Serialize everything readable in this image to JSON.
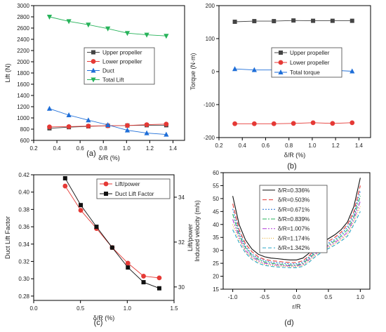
{
  "chart_data": [
    {
      "id": "a",
      "type": "line",
      "panel_label": "(a)",
      "xlabel": "δ/R (%)",
      "ylabel": "Lift (N)",
      "xlim": [
        0.2,
        1.5
      ],
      "ylim": [
        600,
        3000
      ],
      "xticks": [
        0.2,
        0.4,
        0.6,
        0.8,
        1.0,
        1.2,
        1.4
      ],
      "xtick_labels": [
        "0.2",
        "0.4",
        "0.6",
        "0.8",
        "1.0",
        "1.2",
        "1.4"
      ],
      "yticks": [
        600,
        800,
        1000,
        1200,
        1400,
        1600,
        1800,
        2000,
        2200,
        2400,
        2600,
        2800,
        3000
      ],
      "ytick_labels": [
        "600",
        "800",
        "1000",
        "1200",
        "1400",
        "1600",
        "1800",
        "2000",
        "2200",
        "2400",
        "2600",
        "2800",
        "3000"
      ],
      "legend_position": "center-right",
      "x": [
        0.336,
        0.503,
        0.671,
        0.839,
        1.007,
        1.174,
        1.342
      ],
      "series": [
        {
          "name": "Upper propeller",
          "color": "#444444",
          "marker": "square",
          "values": [
            815,
            835,
            850,
            860,
            865,
            870,
            870
          ]
        },
        {
          "name": "Lower propeller",
          "color": "#e53935",
          "marker": "circle",
          "values": [
            840,
            845,
            855,
            860,
            865,
            880,
            890
          ]
        },
        {
          "name": "Duct",
          "color": "#1e6ed8",
          "marker": "triangle-up",
          "values": [
            1165,
            1050,
            960,
            875,
            780,
            730,
            705
          ]
        },
        {
          "name": "Total Lift",
          "color": "#27b35a",
          "marker": "triangle-down",
          "values": [
            2800,
            2720,
            2660,
            2590,
            2510,
            2480,
            2460
          ]
        }
      ]
    },
    {
      "id": "b",
      "type": "line",
      "panel_label": "(b)",
      "xlabel": "δ/R (%)",
      "ylabel": "Torque (N·m)",
      "xlim": [
        0.2,
        1.5
      ],
      "ylim": [
        -200,
        200
      ],
      "xticks": [
        0.2,
        0.4,
        0.6,
        0.8,
        1.0,
        1.2,
        1.4
      ],
      "xtick_labels": [
        "0.2",
        "0.4",
        "0.6",
        "0.8",
        "1.0",
        "1.2",
        "1.4"
      ],
      "yticks": [
        -200,
        -100,
        0,
        100,
        200
      ],
      "ytick_labels": [
        "-200",
        "-100",
        "0",
        "100",
        "200"
      ],
      "legend_position": "center-right",
      "x": [
        0.336,
        0.503,
        0.671,
        0.839,
        1.007,
        1.174,
        1.342
      ],
      "series": [
        {
          "name": "Upper propeller",
          "color": "#444444",
          "marker": "square",
          "values": [
            151,
            153,
            153,
            155,
            154,
            154,
            154
          ]
        },
        {
          "name": "Lower propeller",
          "color": "#e53935",
          "marker": "circle",
          "values": [
            -158,
            -158,
            -158,
            -157,
            -155,
            -157,
            -155
          ]
        },
        {
          "name": "Total torque",
          "color": "#1e6ed8",
          "marker": "triangle-up",
          "values": [
            8,
            5,
            5,
            2,
            1,
            4,
            1
          ]
        }
      ]
    },
    {
      "id": "c",
      "type": "line",
      "panel_label": "(c)",
      "xlabel": "δ/R (%)",
      "ylabel": "Duct Lift Factor",
      "ylabel_right": "Lift/power",
      "xlim": [
        0.0,
        1.5
      ],
      "ylim": [
        0.275,
        0.42
      ],
      "ylim_right": [
        29.4,
        35.0
      ],
      "xticks": [
        0.0,
        0.5,
        1.0,
        1.5
      ],
      "xtick_labels": [
        "0.0",
        "0.5",
        "1.0",
        "1.5"
      ],
      "yticks": [
        0.28,
        0.3,
        0.32,
        0.34,
        0.36,
        0.38,
        0.4,
        0.42
      ],
      "ytick_labels": [
        "0.28",
        "0.30",
        "0.32",
        "0.34",
        "0.36",
        "0.38",
        "0.40",
        "0.42"
      ],
      "yticks_right": [
        30,
        32,
        34
      ],
      "ytick_labels_right": [
        "30",
        "32",
        "34"
      ],
      "legend_position": "top-right",
      "x": [
        0.336,
        0.503,
        0.671,
        0.839,
        1.007,
        1.174,
        1.342
      ],
      "series": [
        {
          "name": "Lift/power",
          "color": "#e53935",
          "marker": "circle",
          "axis": "left",
          "values": [
            0.407,
            0.379,
            0.358,
            0.336,
            0.318,
            0.303,
            0.301
          ]
        },
        {
          "name": "Duct Lift Factor",
          "color": "#111111",
          "marker": "square",
          "axis": "left",
          "values": [
            0.416,
            0.385,
            0.36,
            0.336,
            0.313,
            0.296,
            0.289
          ]
        }
      ]
    },
    {
      "id": "d",
      "type": "line",
      "panel_label": "(d)",
      "xlabel": "r/R",
      "ylabel": "Induced velocity (m/s)",
      "xlim": [
        -1.15,
        1.15
      ],
      "ylim": [
        15,
        60
      ],
      "xticks": [
        -1.0,
        -0.5,
        0.0,
        0.5,
        1.0
      ],
      "xtick_labels": [
        "-1.0",
        "-0.5",
        "0.0",
        "0.5",
        "1.0"
      ],
      "yticks": [
        15,
        20,
        25,
        30,
        35,
        40,
        45,
        50,
        55,
        60
      ],
      "ytick_labels": [
        "15",
        "20",
        "25",
        "30",
        "35",
        "40",
        "45",
        "50",
        "55",
        "60"
      ],
      "legend_position": "top-center",
      "x": [
        -1.0,
        -0.9,
        -0.8,
        -0.7,
        -0.6,
        -0.5,
        -0.4,
        -0.3,
        -0.2,
        -0.1,
        0.0,
        0.1,
        0.2,
        0.3,
        0.4,
        0.5,
        0.6,
        0.7,
        0.8,
        0.9,
        1.0
      ],
      "series": [
        {
          "name": "δ/R=0.336%",
          "color": "#111111",
          "dash": "",
          "values": [
            51,
            40,
            34,
            30.5,
            28.5,
            27.5,
            27,
            26.8,
            26.5,
            26.3,
            26.3,
            27,
            29,
            31.5,
            33,
            34.5,
            36,
            38,
            41,
            47,
            58
          ]
        },
        {
          "name": "δ/R=0.503%",
          "color": "#e53935",
          "dash": "6,3",
          "values": [
            48,
            38,
            32.5,
            29.5,
            27.5,
            26.5,
            26,
            25.8,
            25.5,
            25.3,
            25.3,
            26,
            28,
            30.5,
            32,
            33.5,
            35,
            37,
            40,
            45,
            55
          ]
        },
        {
          "name": "δ/R=0.671%",
          "color": "#1e6ed8",
          "dash": "2,2",
          "values": [
            46,
            37,
            31.5,
            28.5,
            27,
            26,
            25.5,
            25.2,
            25,
            24.8,
            24.8,
            25.5,
            27.5,
            29.8,
            31.3,
            32.8,
            34.2,
            36.2,
            39,
            44,
            53
          ]
        },
        {
          "name": "δ/R=0.839%",
          "color": "#27b35a",
          "dash": "6,2,2,2",
          "values": [
            44,
            36,
            31,
            28,
            26.5,
            25.5,
            25,
            24.7,
            24.5,
            24.3,
            24.3,
            25,
            27,
            29.2,
            30.8,
            32.2,
            33.6,
            35.5,
            38,
            43,
            51
          ]
        },
        {
          "name": "δ/R=1.007%",
          "color": "#b23cd9",
          "dash": "6,2,2,2,2,2",
          "values": [
            42,
            35,
            30,
            27.5,
            26,
            25,
            24.6,
            24.3,
            24.1,
            24,
            24,
            24.6,
            26.5,
            28.7,
            30.3,
            31.7,
            33,
            34.8,
            37,
            42,
            49
          ]
        },
        {
          "name": "δ/R=1.174%",
          "color": "#e6a817",
          "dash": "1,2",
          "values": [
            40,
            34,
            29.5,
            27,
            25.5,
            24.6,
            24.2,
            24,
            23.8,
            23.7,
            23.7,
            24.2,
            26,
            28.2,
            29.8,
            31.2,
            32.5,
            34.2,
            36.2,
            41,
            47
          ]
        },
        {
          "name": "δ/R=1.342%",
          "color": "#2aa6c8",
          "dash": "5,3",
          "values": [
            38,
            33,
            29,
            26.5,
            25,
            24.2,
            23.8,
            23.6,
            23.4,
            23.3,
            23.3,
            23.8,
            25.5,
            27.7,
            29.3,
            30.7,
            32,
            33.6,
            35.5,
            40,
            45
          ]
        }
      ]
    }
  ]
}
